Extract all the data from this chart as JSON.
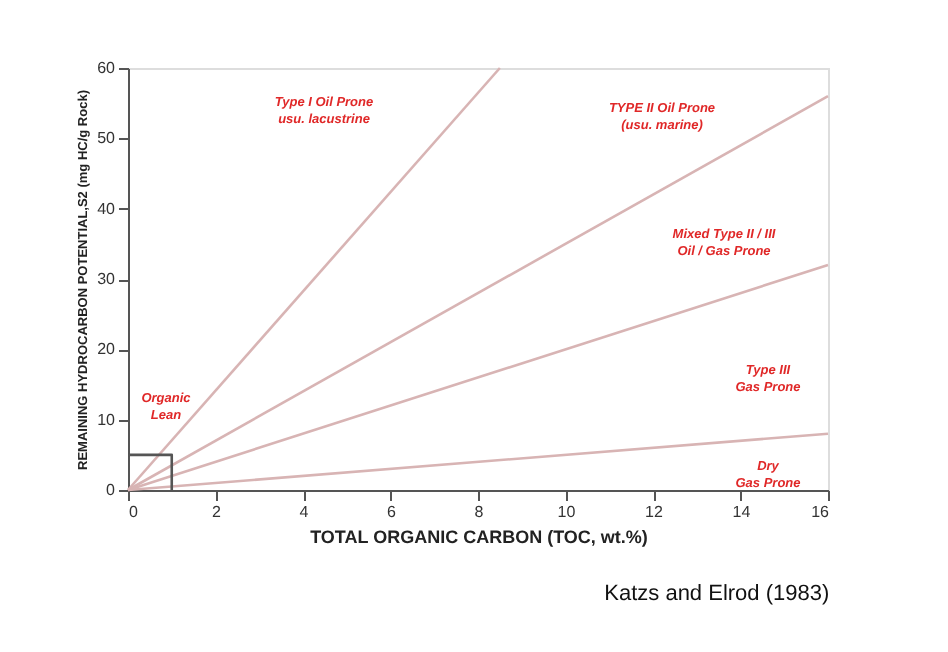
{
  "chart_data": {
    "type": "line",
    "xlabel": "TOTAL ORGANIC CARBON (TOC, wt.%)",
    "ylabel": "REMAINING HYDROCARBON POTENTIAL,S2 (mg HC/g Rock)",
    "xlim": [
      0,
      16
    ],
    "xticks": [
      0,
      2,
      4,
      6,
      8,
      10,
      12,
      14,
      16
    ],
    "ylim": [
      0,
      60
    ],
    "yticks": [
      0,
      10,
      20,
      30,
      40,
      50,
      60
    ],
    "grid": false,
    "series": [
      {
        "color": "#d8b4b4",
        "x": [
          0,
          8.5
        ],
        "values": [
          0,
          60
        ]
      },
      {
        "color": "#d8b4b4",
        "x": [
          0,
          16
        ],
        "values": [
          0,
          56
        ]
      },
      {
        "color": "#d8b4b4",
        "x": [
          0,
          16
        ],
        "values": [
          0,
          32
        ]
      },
      {
        "color": "#d8b4b4",
        "x": [
          0,
          16
        ],
        "values": [
          0,
          8
        ]
      },
      {
        "color": "#555555",
        "x": [
          0,
          1,
          1
        ],
        "values": [
          5,
          5,
          0
        ]
      }
    ],
    "annotations": [
      "Type I Oil Prone\nusu. lacustrine",
      "TYPE II Oil Prone\n(usu. marine)",
      "Mixed Type II / III\nOil / Gas Prone",
      "Type III\nGas Prone",
      "Dry\nGas Prone",
      "Organic\nLean",
      "Katzs and Elrod (1983)"
    ]
  }
}
